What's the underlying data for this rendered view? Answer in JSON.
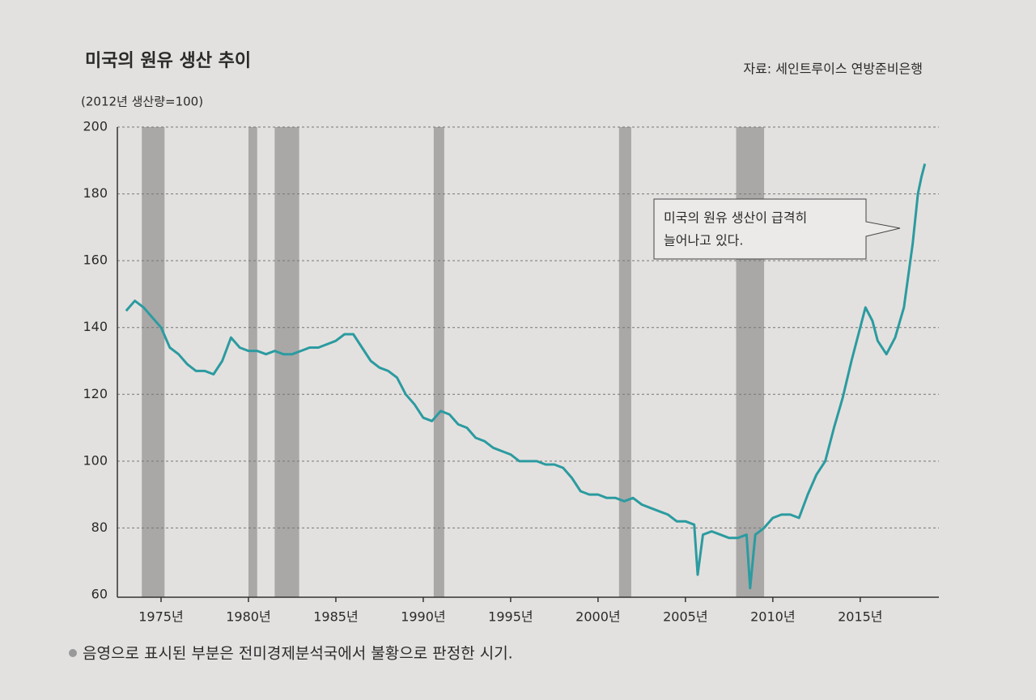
{
  "chart_data": {
    "type": "line",
    "title": "미국의 원유 생산 추이",
    "source": "자료: 세인트루이스 연방준비은행",
    "y_label": "(2012년 생산량=100)",
    "annotation": [
      "미국의 원유 생산이 급격히",
      "늘어나고 있다."
    ],
    "footnote": "음영으로 표시된 부분은 전미경제분석국에서 불황으로 판정한 시기.",
    "color": "#2b9ba0",
    "shade_color": "#a9a8a7",
    "grid": true,
    "xlim": [
      1972.5,
      2019.5
    ],
    "ylim": [
      60,
      200
    ],
    "xticks": [
      {
        "value": 1975,
        "label": "1975년"
      },
      {
        "value": 1980,
        "label": "1980년"
      },
      {
        "value": 1985,
        "label": "1985년"
      },
      {
        "value": 1990,
        "label": "1990년"
      },
      {
        "value": 1995,
        "label": "1995년"
      },
      {
        "value": 2000,
        "label": "2000년"
      },
      {
        "value": 2005,
        "label": "2005년"
      },
      {
        "value": 2010,
        "label": "2010년"
      },
      {
        "value": 2015,
        "label": "2015년"
      }
    ],
    "yticks": [
      60,
      80,
      100,
      120,
      140,
      160,
      180,
      200
    ],
    "shaded_periods": [
      [
        1973.9,
        1975.2
      ],
      [
        1980.0,
        1980.5
      ],
      [
        1981.5,
        1982.9
      ],
      [
        1990.6,
        1991.2
      ],
      [
        2001.2,
        2001.9
      ],
      [
        2007.9,
        2009.5
      ]
    ],
    "x": [
      1973.0,
      1973.5,
      1974.0,
      1974.5,
      1975.0,
      1975.5,
      1976.0,
      1976.5,
      1977.0,
      1977.5,
      1978.0,
      1978.5,
      1979.0,
      1979.5,
      1980.0,
      1980.5,
      1981.0,
      1981.5,
      1982.0,
      1982.5,
      1983.0,
      1983.5,
      1984.0,
      1984.5,
      1985.0,
      1985.5,
      1986.0,
      1986.5,
      1987.0,
      1987.5,
      1988.0,
      1988.5,
      1989.0,
      1989.5,
      1990.0,
      1990.5,
      1991.0,
      1991.5,
      1992.0,
      1992.5,
      1993.0,
      1993.5,
      1994.0,
      1994.5,
      1995.0,
      1995.5,
      1996.0,
      1996.5,
      1997.0,
      1997.5,
      1998.0,
      1998.5,
      1999.0,
      1999.5,
      2000.0,
      2000.5,
      2001.0,
      2001.5,
      2002.0,
      2002.5,
      2003.0,
      2003.5,
      2004.0,
      2004.5,
      2005.0,
      2005.5,
      2005.7,
      2006.0,
      2006.5,
      2007.0,
      2007.5,
      2008.0,
      2008.5,
      2008.7,
      2009.0,
      2009.5,
      2010.0,
      2010.5,
      2011.0,
      2011.5,
      2012.0,
      2012.5,
      2013.0,
      2013.5,
      2014.0,
      2014.5,
      2015.0,
      2015.3,
      2015.7,
      2016.0,
      2016.5,
      2017.0,
      2017.5,
      2018.0,
      2018.3,
      2018.5,
      2018.7
    ],
    "values": [
      145,
      148,
      146,
      143,
      140,
      134,
      132,
      129,
      127,
      127,
      126,
      130,
      137,
      134,
      133,
      133,
      132,
      133,
      132,
      132,
      133,
      134,
      134,
      135,
      136,
      138,
      138,
      134,
      130,
      128,
      127,
      125,
      120,
      117,
      113,
      112,
      115,
      114,
      111,
      110,
      107,
      106,
      104,
      103,
      102,
      100,
      100,
      100,
      99,
      99,
      98,
      95,
      91,
      90,
      90,
      89,
      89,
      88,
      89,
      87,
      86,
      85,
      84,
      82,
      82,
      81,
      66,
      78,
      79,
      78,
      77,
      77,
      78,
      62,
      78,
      80,
      83,
      84,
      84,
      83,
      90,
      96,
      100,
      110,
      119,
      130,
      140,
      146,
      142,
      136,
      132,
      137,
      146,
      165,
      180,
      185,
      189
    ]
  }
}
